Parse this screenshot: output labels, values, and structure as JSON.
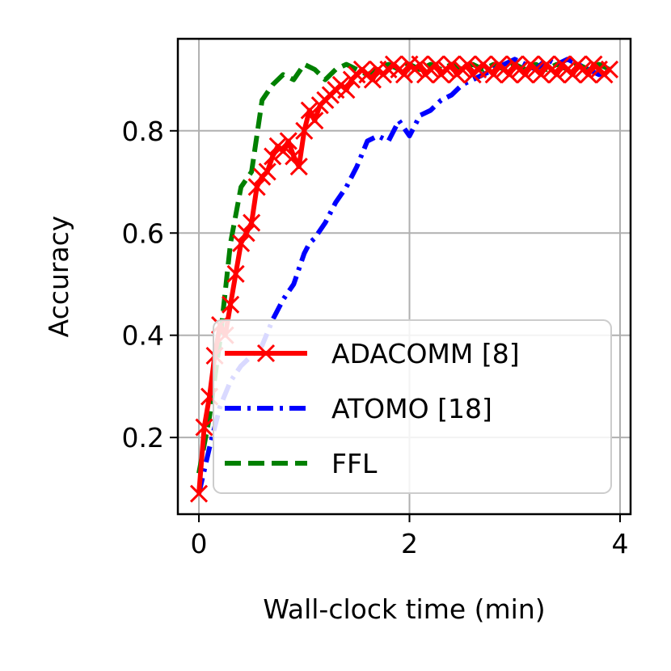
{
  "chart_data": {
    "type": "line",
    "xlabel": "Wall-clock time (min)",
    "ylabel": "Accuracy",
    "xlim": [
      -0.2,
      4.1
    ],
    "ylim": [
      0.05,
      0.98
    ],
    "x_ticks": [
      0,
      2,
      4
    ],
    "x_tick_labels": [
      "0",
      "2",
      "4"
    ],
    "y_ticks": [
      0.2,
      0.4,
      0.6,
      0.8
    ],
    "y_tick_labels": [
      "0.2",
      "0.4",
      "0.6",
      "0.8"
    ],
    "grid": true,
    "legend_position": "lower-right",
    "series": [
      {
        "name": "ADACOMM [8]",
        "color": "#ff0000",
        "style": "solid-x",
        "x": [
          0.0,
          0.05,
          0.1,
          0.15,
          0.2,
          0.25,
          0.3,
          0.35,
          0.4,
          0.45,
          0.5,
          0.55,
          0.6,
          0.65,
          0.7,
          0.75,
          0.8,
          0.85,
          0.9,
          0.95,
          1.0,
          1.05,
          1.1,
          1.15,
          1.2,
          1.25,
          1.3,
          1.35,
          1.4,
          1.45,
          1.5,
          1.55,
          1.6,
          1.65,
          1.7,
          1.75,
          1.8,
          1.85,
          1.9,
          1.95,
          2.0,
          2.05,
          2.1,
          2.15,
          2.2,
          2.25,
          2.3,
          2.35,
          2.4,
          2.45,
          2.5,
          2.55,
          2.6,
          2.65,
          2.7,
          2.75,
          2.8,
          2.85,
          2.9,
          2.95,
          3.0,
          3.05,
          3.1,
          3.15,
          3.2,
          3.25,
          3.3,
          3.35,
          3.4,
          3.45,
          3.5,
          3.55,
          3.6,
          3.65,
          3.7,
          3.75,
          3.8,
          3.85,
          3.9
        ],
        "y": [
          0.09,
          0.22,
          0.28,
          0.36,
          0.42,
          0.4,
          0.46,
          0.52,
          0.58,
          0.6,
          0.62,
          0.69,
          0.71,
          0.72,
          0.75,
          0.77,
          0.76,
          0.78,
          0.75,
          0.73,
          0.8,
          0.84,
          0.82,
          0.85,
          0.86,
          0.87,
          0.88,
          0.89,
          0.88,
          0.9,
          0.91,
          0.92,
          0.91,
          0.9,
          0.92,
          0.91,
          0.92,
          0.93,
          0.92,
          0.91,
          0.93,
          0.92,
          0.93,
          0.91,
          0.92,
          0.93,
          0.91,
          0.92,
          0.93,
          0.91,
          0.92,
          0.93,
          0.91,
          0.92,
          0.93,
          0.92,
          0.91,
          0.93,
          0.92,
          0.91,
          0.93,
          0.92,
          0.91,
          0.93,
          0.92,
          0.91,
          0.93,
          0.92,
          0.91,
          0.93,
          0.92,
          0.91,
          0.93,
          0.92,
          0.91,
          0.93,
          0.92,
          0.91,
          0.92
        ]
      },
      {
        "name": "ATOMO [18]",
        "color": "#0000ff",
        "style": "dashdot",
        "x": [
          0.0,
          0.1,
          0.2,
          0.3,
          0.4,
          0.5,
          0.6,
          0.7,
          0.8,
          0.9,
          1.0,
          1.05,
          1.1,
          1.2,
          1.3,
          1.4,
          1.5,
          1.6,
          1.7,
          1.8,
          1.9,
          2.0,
          2.1,
          2.2,
          2.3,
          2.4,
          2.5,
          2.6,
          2.7,
          2.8,
          2.9,
          3.0,
          3.1,
          3.2,
          3.3,
          3.4,
          3.5,
          3.6,
          3.7,
          3.8,
          3.9
        ],
        "y": [
          0.09,
          0.18,
          0.26,
          0.31,
          0.34,
          0.36,
          0.38,
          0.43,
          0.47,
          0.5,
          0.56,
          0.58,
          0.59,
          0.62,
          0.66,
          0.69,
          0.73,
          0.78,
          0.79,
          0.78,
          0.82,
          0.79,
          0.83,
          0.84,
          0.86,
          0.87,
          0.89,
          0.9,
          0.91,
          0.92,
          0.93,
          0.94,
          0.93,
          0.92,
          0.94,
          0.93,
          0.94,
          0.93,
          0.92,
          0.91,
          0.92
        ]
      },
      {
        "name": "FFL",
        "color": "#008000",
        "style": "dashed",
        "x": [
          0.0,
          0.1,
          0.2,
          0.3,
          0.4,
          0.5,
          0.6,
          0.7,
          0.8,
          0.9,
          1.0,
          1.1,
          1.2,
          1.3,
          1.4,
          1.5,
          1.6,
          1.7,
          1.8,
          1.9,
          2.0,
          2.1,
          2.2,
          2.3,
          2.4,
          2.5,
          2.6,
          2.7,
          2.8,
          2.9,
          3.0,
          3.1,
          3.2,
          3.3,
          3.4,
          3.5,
          3.6,
          3.7,
          3.8,
          3.9
        ],
        "y": [
          0.13,
          0.24,
          0.39,
          0.58,
          0.69,
          0.72,
          0.86,
          0.89,
          0.91,
          0.9,
          0.93,
          0.92,
          0.9,
          0.92,
          0.93,
          0.92,
          0.91,
          0.92,
          0.93,
          0.92,
          0.93,
          0.92,
          0.93,
          0.92,
          0.93,
          0.92,
          0.93,
          0.92,
          0.93,
          0.92,
          0.93,
          0.92,
          0.93,
          0.92,
          0.93,
          0.92,
          0.93,
          0.92,
          0.93,
          0.92
        ]
      }
    ]
  }
}
